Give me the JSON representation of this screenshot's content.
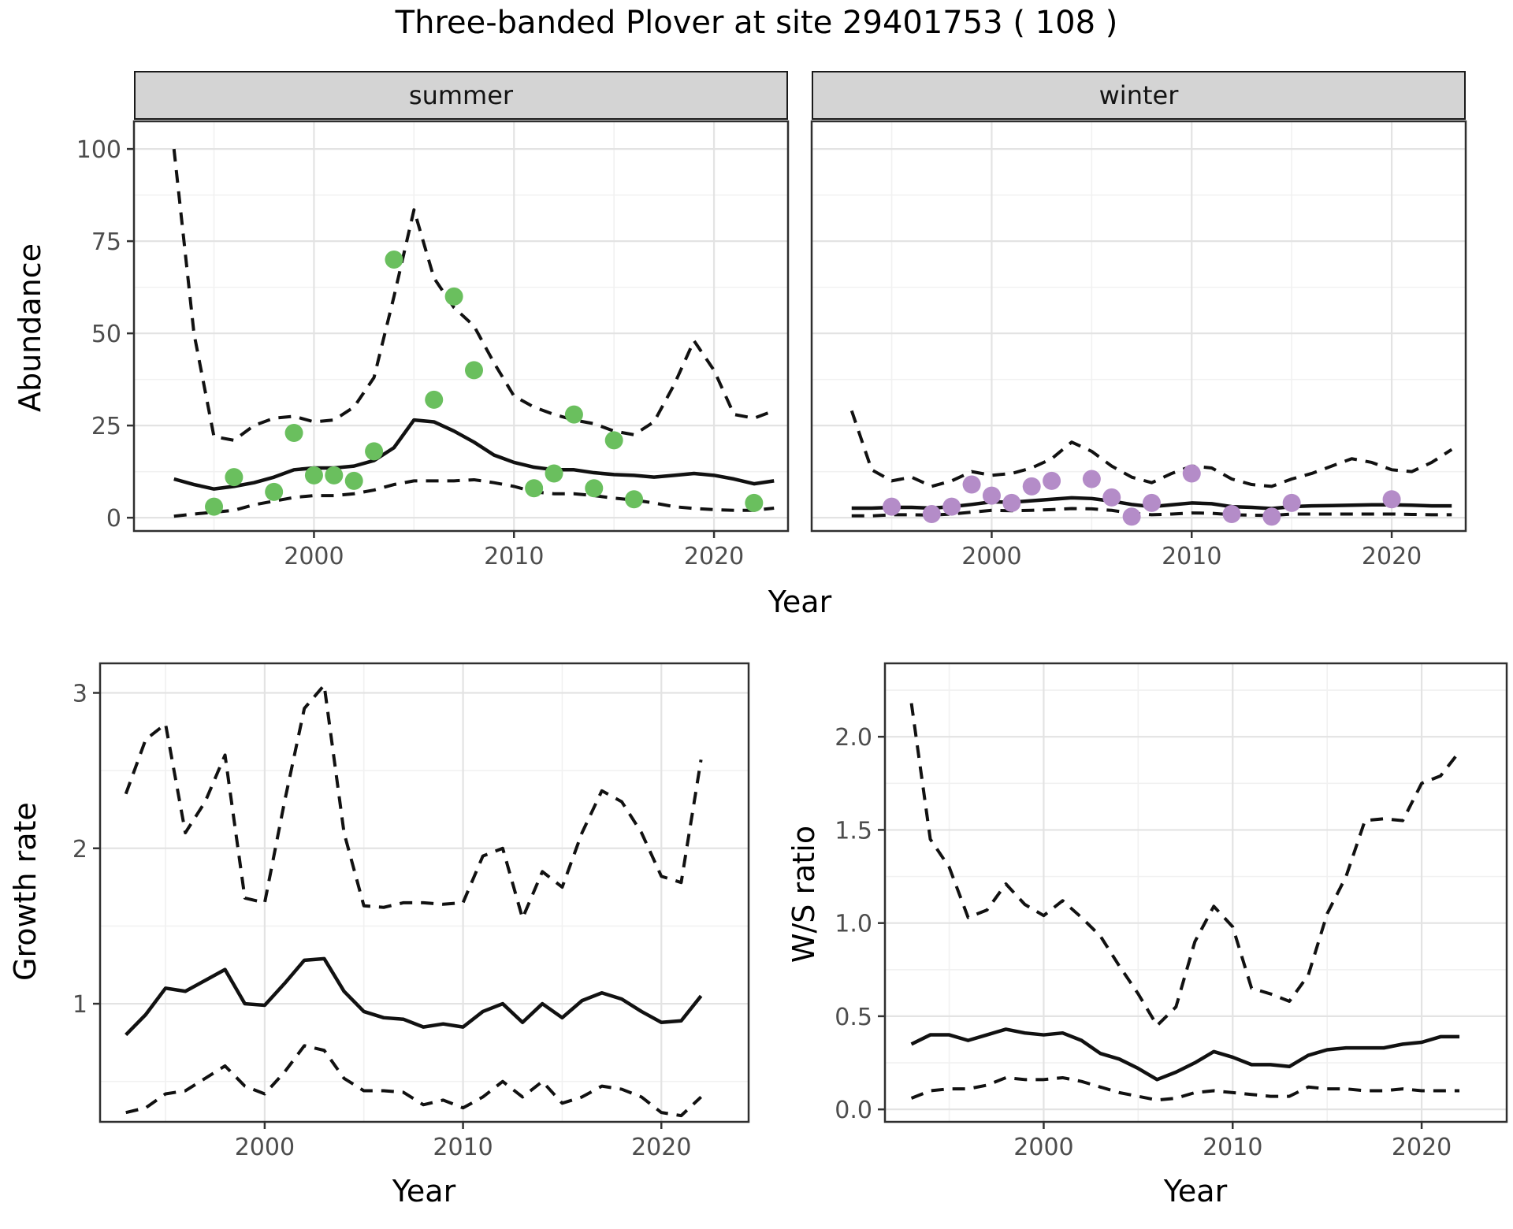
{
  "labels": {
    "title": "Three-banded Plover at site 29401753 ( 108 )",
    "facet_summer": "summer",
    "facet_winter": "winter",
    "year": "Year",
    "abundance": "Abundance",
    "growth_rate": "Growth rate",
    "ws_ratio": "W/S ratio"
  },
  "colors": {
    "summer_point": "#6abf5e",
    "winter_point": "#b48cc8",
    "line": "#111111",
    "grid_major": "#e3e3e3",
    "grid_minor": "#f1f1f1",
    "panel_border": "#2f2f2f",
    "tick_mark": "#333333",
    "axis_text": "#4d4d4d",
    "strip_bg": "#d4d4d4"
  },
  "chart_data": [
    {
      "id": "abundance_summer",
      "type": "line",
      "facet": "summer",
      "xlabel": "Year",
      "ylabel": "Abundance",
      "xlim": [
        1991.0,
        2023.7
      ],
      "ylim": [
        -3.6,
        107.5
      ],
      "x_major": [
        2000,
        2010,
        2020
      ],
      "x_minor": [
        1995,
        2005,
        2015
      ],
      "x_tick_labels": [
        "2000",
        "2010",
        "2020"
      ],
      "y_major": [
        0,
        25,
        50,
        75,
        100
      ],
      "y_minor": [
        12.5,
        37.5,
        62.5,
        87.5
      ],
      "y_tick_labels": [
        "0",
        "25",
        "50",
        "75",
        "100"
      ],
      "show_y_ticks": true,
      "years": [
        1993,
        1994,
        1995,
        1996,
        1997,
        1998,
        1999,
        2000,
        2001,
        2002,
        2003,
        2004,
        2005,
        2006,
        2007,
        2008,
        2009,
        2010,
        2011,
        2012,
        2013,
        2014,
        2015,
        2016,
        2017,
        2018,
        2019,
        2020,
        2021,
        2022,
        2023
      ],
      "series": [
        {
          "name": "median",
          "style": "solid",
          "values": [
            10.5,
            9.0,
            7.8,
            8.5,
            9.5,
            11.0,
            13.0,
            13.5,
            13.5,
            14.0,
            15.5,
            19.0,
            26.5,
            26.0,
            23.5,
            20.5,
            17.0,
            15.0,
            13.7,
            13.0,
            13.0,
            12.2,
            11.7,
            11.5,
            11.0,
            11.5,
            12.0,
            11.5,
            10.5,
            9.2,
            10.0
          ]
        },
        {
          "name": "upper_ci",
          "style": "dashed",
          "values": [
            100,
            50,
            22,
            21,
            25,
            27,
            27.5,
            26,
            26.5,
            30,
            38,
            60,
            83.5,
            65,
            57,
            52,
            42,
            33,
            30,
            28,
            26.5,
            25.5,
            23.5,
            22.5,
            26,
            36,
            48,
            40,
            28,
            27,
            29
          ]
        },
        {
          "name": "lower_ci",
          "style": "dashed",
          "values": [
            0.4,
            1.0,
            1.5,
            2.0,
            3.5,
            4.5,
            5.5,
            6.0,
            6.0,
            6.5,
            7.5,
            9.0,
            10.0,
            10.0,
            10.0,
            10.3,
            9.5,
            8.5,
            7.0,
            6.5,
            6.5,
            6.0,
            5.3,
            4.8,
            4.0,
            3.0,
            2.5,
            2.2,
            2.0,
            2.0,
            2.6
          ]
        }
      ],
      "points": {
        "name": "summer-observations",
        "color": "#6abf5e",
        "years": [
          1995,
          1996,
          1998,
          1999,
          2000,
          2001,
          2002,
          2003,
          2004,
          2006,
          2007,
          2008,
          2011,
          2012,
          2013,
          2014,
          2015,
          2016,
          2022
        ],
        "values": [
          3,
          11,
          7,
          23,
          11.5,
          11.5,
          10,
          18,
          70,
          32,
          60,
          40,
          8,
          12,
          28,
          8,
          21,
          5,
          4
        ]
      }
    },
    {
      "id": "abundance_winter",
      "type": "line",
      "facet": "winter",
      "xlabel": "Year",
      "ylabel": "Abundance",
      "xlim": [
        1991.0,
        2023.7
      ],
      "ylim": [
        -3.6,
        107.5
      ],
      "x_major": [
        2000,
        2010,
        2020
      ],
      "x_minor": [
        1995,
        2005,
        2015
      ],
      "x_tick_labels": [
        "2000",
        "2010",
        "2020"
      ],
      "y_major": [
        0,
        25,
        50,
        75,
        100
      ],
      "y_minor": [
        12.5,
        37.5,
        62.5,
        87.5
      ],
      "y_tick_labels": [
        "0",
        "25",
        "50",
        "75",
        "100"
      ],
      "show_y_ticks": false,
      "years": [
        1993,
        1994,
        1995,
        1996,
        1997,
        1998,
        1999,
        2000,
        2001,
        2002,
        2003,
        2004,
        2005,
        2006,
        2007,
        2008,
        2009,
        2010,
        2011,
        2012,
        2013,
        2014,
        2015,
        2016,
        2017,
        2018,
        2019,
        2020,
        2021,
        2022,
        2023
      ],
      "series": [
        {
          "name": "median",
          "style": "solid",
          "values": [
            2.6,
            2.6,
            2.8,
            2.8,
            2.6,
            3.0,
            3.6,
            4.3,
            4.2,
            4.6,
            5.0,
            5.4,
            5.2,
            4.5,
            3.6,
            3.0,
            3.5,
            4.0,
            3.8,
            3.0,
            2.8,
            2.5,
            3.0,
            3.2,
            3.3,
            3.4,
            3.5,
            3.5,
            3.4,
            3.2,
            3.2
          ]
        },
        {
          "name": "upper_ci",
          "style": "dashed",
          "values": [
            29,
            13,
            10,
            11,
            8.5,
            10,
            12.5,
            11.5,
            12,
            13.5,
            16,
            20.5,
            18,
            14,
            11,
            9.5,
            12,
            14,
            13.5,
            10.5,
            9,
            8.5,
            10.5,
            12,
            14,
            16,
            15,
            13,
            12.5,
            15,
            18.5
          ]
        },
        {
          "name": "lower_ci",
          "style": "dashed",
          "values": [
            0.5,
            0.5,
            0.8,
            0.8,
            0.7,
            1.0,
            1.5,
            2.0,
            1.9,
            2.0,
            2.2,
            2.5,
            2.4,
            2.0,
            1.2,
            0.8,
            1.0,
            1.3,
            1.2,
            0.8,
            0.7,
            0.6,
            1.0,
            1.0,
            1.0,
            1.0,
            1.0,
            1.0,
            0.9,
            0.8,
            0.8
          ]
        }
      ],
      "points": {
        "name": "winter-observations",
        "color": "#b48cc8",
        "years": [
          1995,
          1997,
          1998,
          1999,
          2000,
          2001,
          2002,
          2003,
          2005,
          2006,
          2007,
          2008,
          2010,
          2012,
          2014,
          2015,
          2020
        ],
        "values": [
          3,
          1,
          3,
          9,
          6,
          4,
          8.5,
          10,
          10.5,
          5.5,
          0.3,
          4,
          12,
          1,
          0.3,
          4,
          5
        ]
      }
    },
    {
      "id": "growth_rate",
      "type": "line",
      "facet": null,
      "xlabel": "Year",
      "ylabel": "Growth rate",
      "xlim": [
        1991.7,
        2024.4
      ],
      "ylim": [
        0.24,
        3.19
      ],
      "x_major": [
        2000,
        2010,
        2020
      ],
      "x_minor": [
        1995,
        2005,
        2015
      ],
      "x_tick_labels": [
        "2000",
        "2010",
        "2020"
      ],
      "y_major": [
        1,
        2,
        3
      ],
      "y_minor": [
        0.5,
        1.5,
        2.5
      ],
      "y_tick_labels": [
        "1",
        "2",
        "3"
      ],
      "show_y_ticks": true,
      "years": [
        1993,
        1994,
        1995,
        1996,
        1997,
        1998,
        1999,
        2000,
        2001,
        2002,
        2003,
        2004,
        2005,
        2006,
        2007,
        2008,
        2009,
        2010,
        2011,
        2012,
        2013,
        2014,
        2015,
        2016,
        2017,
        2018,
        2019,
        2020,
        2021,
        2022
      ],
      "series": [
        {
          "name": "median",
          "style": "solid",
          "values": [
            0.8,
            0.93,
            1.1,
            1.08,
            1.15,
            1.22,
            1.0,
            0.99,
            1.13,
            1.28,
            1.29,
            1.08,
            0.95,
            0.91,
            0.9,
            0.85,
            0.87,
            0.85,
            0.95,
            1.0,
            0.88,
            1.0,
            0.91,
            1.02,
            1.07,
            1.03,
            0.95,
            0.88,
            0.89,
            1.05
          ]
        },
        {
          "name": "upper_ci",
          "style": "dashed",
          "values": [
            2.35,
            2.7,
            2.8,
            2.1,
            2.3,
            2.6,
            1.68,
            1.65,
            2.3,
            2.9,
            3.05,
            2.1,
            1.63,
            1.62,
            1.65,
            1.65,
            1.64,
            1.65,
            1.95,
            2.0,
            1.55,
            1.85,
            1.75,
            2.1,
            2.37,
            2.3,
            2.1,
            1.82,
            1.78,
            2.57
          ]
        },
        {
          "name": "lower_ci",
          "style": "dashed",
          "values": [
            0.3,
            0.33,
            0.42,
            0.44,
            0.52,
            0.6,
            0.47,
            0.42,
            0.56,
            0.73,
            0.7,
            0.52,
            0.44,
            0.44,
            0.43,
            0.35,
            0.38,
            0.33,
            0.4,
            0.5,
            0.4,
            0.5,
            0.36,
            0.4,
            0.47,
            0.45,
            0.4,
            0.3,
            0.28,
            0.4
          ]
        }
      ],
      "points": null
    },
    {
      "id": "ws_ratio",
      "type": "line",
      "facet": null,
      "xlabel": "Year",
      "ylabel": "W/S ratio",
      "xlim": [
        1991.6,
        2024.5
      ],
      "ylim": [
        -0.067,
        2.394
      ],
      "x_major": [
        2000,
        2010,
        2020
      ],
      "x_minor": [
        1995,
        2005,
        2015
      ],
      "x_tick_labels": [
        "2000",
        "2010",
        "2020"
      ],
      "y_major": [
        0.0,
        0.5,
        1.0,
        1.5,
        2.0
      ],
      "y_minor": [
        0.25,
        0.75,
        1.25,
        1.75,
        2.25
      ],
      "y_tick_labels": [
        "0.0",
        "0.5",
        "1.0",
        "1.5",
        "2.0"
      ],
      "show_y_ticks": true,
      "years": [
        1993,
        1994,
        1995,
        1996,
        1997,
        1998,
        1999,
        2000,
        2001,
        2002,
        2003,
        2004,
        2005,
        2006,
        2007,
        2008,
        2009,
        2010,
        2011,
        2012,
        2013,
        2014,
        2015,
        2016,
        2017,
        2018,
        2019,
        2020,
        2021,
        2022
      ],
      "series": [
        {
          "name": "median",
          "style": "solid",
          "values": [
            0.35,
            0.4,
            0.4,
            0.37,
            0.4,
            0.43,
            0.41,
            0.4,
            0.41,
            0.37,
            0.3,
            0.27,
            0.22,
            0.16,
            0.2,
            0.25,
            0.31,
            0.28,
            0.24,
            0.24,
            0.23,
            0.29,
            0.32,
            0.33,
            0.33,
            0.33,
            0.35,
            0.36,
            0.39,
            0.39
          ]
        },
        {
          "name": "upper_ci",
          "style": "dashed",
          "values": [
            2.18,
            1.45,
            1.3,
            1.03,
            1.07,
            1.21,
            1.1,
            1.04,
            1.12,
            1.03,
            0.93,
            0.77,
            0.62,
            0.45,
            0.55,
            0.9,
            1.09,
            0.98,
            0.65,
            0.62,
            0.58,
            0.72,
            1.05,
            1.25,
            1.55,
            1.56,
            1.55,
            1.75,
            1.79,
            1.92
          ]
        },
        {
          "name": "lower_ci",
          "style": "dashed",
          "values": [
            0.06,
            0.1,
            0.11,
            0.11,
            0.13,
            0.17,
            0.16,
            0.16,
            0.17,
            0.15,
            0.12,
            0.09,
            0.07,
            0.05,
            0.06,
            0.09,
            0.1,
            0.09,
            0.08,
            0.07,
            0.07,
            0.12,
            0.11,
            0.11,
            0.1,
            0.1,
            0.11,
            0.1,
            0.1,
            0.1
          ]
        }
      ],
      "points": null
    }
  ]
}
